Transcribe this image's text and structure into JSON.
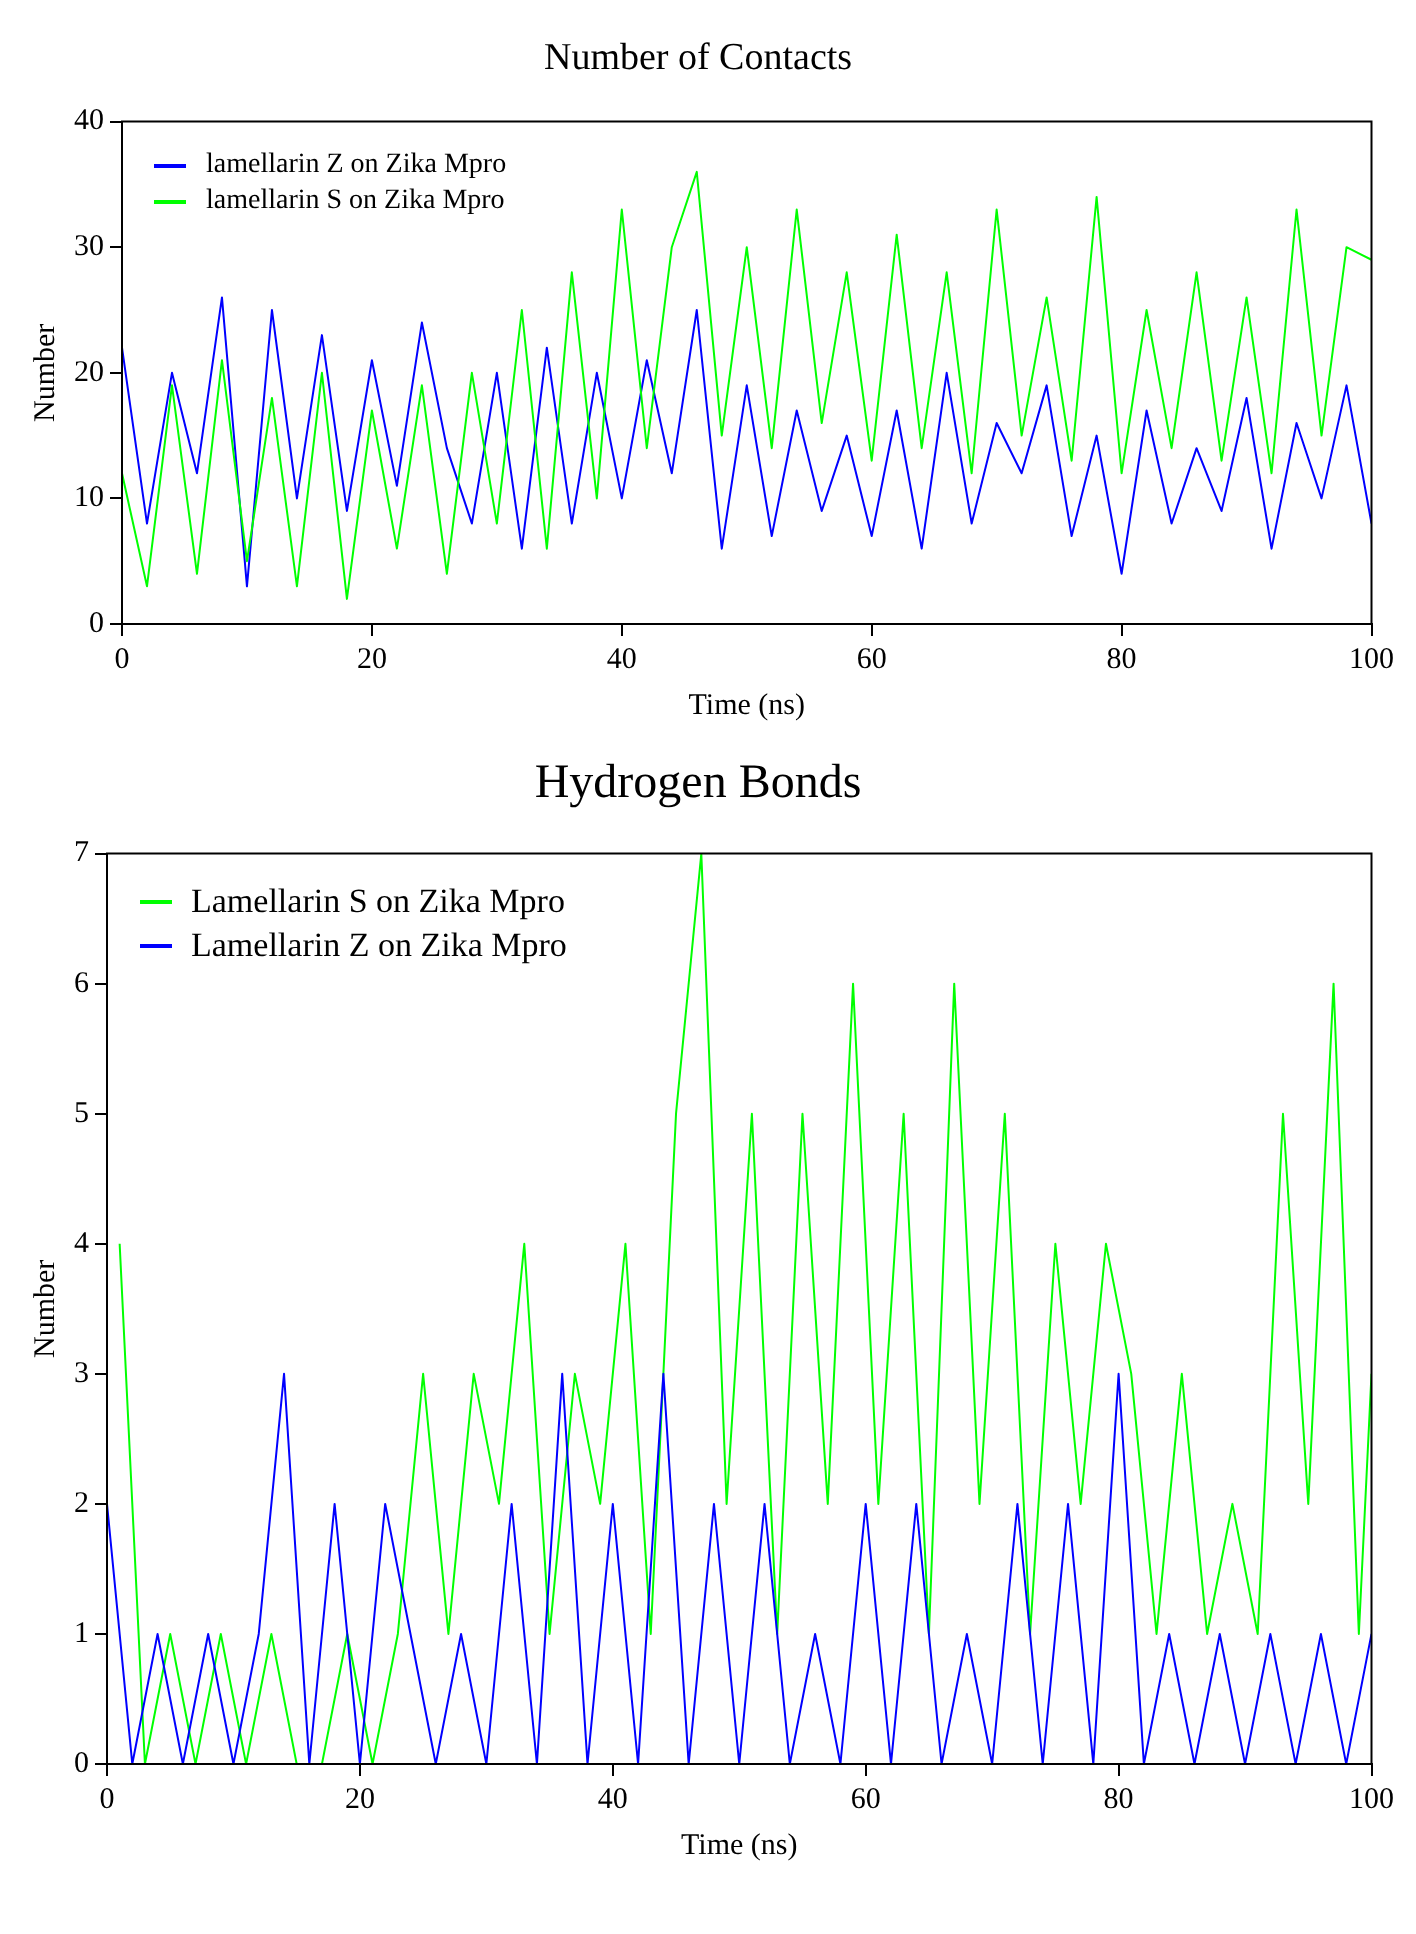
{
  "chart_data": [
    {
      "type": "line",
      "title": "Number of Contacts",
      "xlabel": "Time (ns)",
      "ylabel": "Number",
      "xlim": [
        0,
        100
      ],
      "xticks": [
        0,
        20,
        40,
        60,
        80,
        100
      ],
      "ylim": [
        0,
        40
      ],
      "yticks": [
        0,
        10,
        20,
        30,
        40
      ],
      "grid": false,
      "legend": "top left",
      "marker": "none",
      "line_style": "solid",
      "series": [
        {
          "name": "lamellarin Z on Zika Mpro",
          "color": "#0000ff",
          "x": [
            0,
            2,
            4,
            6,
            8,
            10,
            12,
            14,
            16,
            18,
            20,
            22,
            24,
            26,
            28,
            30,
            32,
            34,
            36,
            38,
            40,
            42,
            44,
            46,
            48,
            50,
            52,
            54,
            56,
            58,
            60,
            62,
            64,
            66,
            68,
            70,
            72,
            74,
            76,
            78,
            80,
            82,
            84,
            86,
            88,
            90,
            92,
            94,
            96,
            98,
            100
          ],
          "values": [
            22,
            8,
            20,
            12,
            26,
            3,
            25,
            10,
            23,
            9,
            21,
            11,
            24,
            14,
            8,
            20,
            6,
            22,
            8,
            20,
            10,
            21,
            12,
            25,
            6,
            19,
            7,
            17,
            9,
            15,
            7,
            17,
            6,
            20,
            8,
            16,
            12,
            19,
            7,
            15,
            4,
            17,
            8,
            14,
            9,
            18,
            6,
            16,
            10,
            19,
            8
          ]
        },
        {
          "name": "lamellarin S on Zika Mpro",
          "color": "#00ff00",
          "x": [
            0,
            2,
            4,
            6,
            8,
            10,
            12,
            14,
            16,
            18,
            20,
            22,
            24,
            26,
            28,
            30,
            32,
            34,
            36,
            38,
            40,
            42,
            44,
            46,
            48,
            50,
            52,
            54,
            56,
            58,
            60,
            62,
            64,
            66,
            68,
            70,
            72,
            74,
            76,
            78,
            80,
            82,
            84,
            86,
            88,
            90,
            92,
            94,
            96,
            98,
            100
          ],
          "values": [
            12,
            3,
            19,
            4,
            21,
            5,
            18,
            3,
            20,
            2,
            17,
            6,
            19,
            4,
            20,
            8,
            25,
            6,
            28,
            10,
            33,
            14,
            30,
            36,
            15,
            30,
            14,
            33,
            16,
            28,
            13,
            31,
            14,
            28,
            12,
            33,
            15,
            26,
            13,
            34,
            12,
            25,
            14,
            28,
            13,
            26,
            12,
            33,
            15,
            30,
            29
          ]
        }
      ]
    },
    {
      "type": "line",
      "title": "Hydrogen Bonds",
      "xlabel": "Time (ns)",
      "ylabel": "Number",
      "xlim": [
        0,
        100
      ],
      "xticks": [
        0,
        20,
        40,
        60,
        80,
        100
      ],
      "ylim": [
        0,
        7
      ],
      "yticks": [
        0,
        1,
        2,
        3,
        4,
        5,
        6,
        7
      ],
      "grid": false,
      "legend": "top left",
      "marker": "none",
      "line_style": "solid",
      "series": [
        {
          "name": "Lamellarin S on Zika Mpro",
          "color": "#00ff00",
          "x": [
            1,
            3,
            5,
            7,
            9,
            11,
            13,
            15,
            17,
            19,
            21,
            23,
            25,
            27,
            29,
            31,
            33,
            35,
            37,
            39,
            41,
            43,
            45,
            47,
            49,
            51,
            53,
            55,
            57,
            59,
            61,
            63,
            65,
            67,
            69,
            71,
            73,
            75,
            77,
            79,
            81,
            83,
            85,
            87,
            89,
            91,
            93,
            95,
            97,
            99,
            100
          ],
          "values": [
            4,
            0,
            1,
            0,
            1,
            0,
            1,
            0,
            0,
            1,
            0,
            1,
            3,
            1,
            3,
            2,
            4,
            1,
            3,
            2,
            4,
            1,
            5,
            7,
            2,
            5,
            1,
            5,
            2,
            6,
            2,
            5,
            1,
            6,
            2,
            5,
            1,
            4,
            2,
            4,
            3,
            1,
            3,
            1,
            2,
            1,
            5,
            2,
            6,
            1,
            3
          ]
        },
        {
          "name": "Lamellarin Z on Zika Mpro",
          "color": "#0000ff",
          "x": [
            0,
            2,
            4,
            6,
            8,
            10,
            12,
            14,
            16,
            18,
            20,
            22,
            24,
            26,
            28,
            30,
            32,
            34,
            36,
            38,
            40,
            42,
            44,
            46,
            48,
            50,
            52,
            54,
            56,
            58,
            60,
            62,
            64,
            66,
            68,
            70,
            72,
            74,
            76,
            78,
            80,
            82,
            84,
            86,
            88,
            90,
            92,
            94,
            96,
            98,
            100
          ],
          "values": [
            2,
            0,
            1,
            0,
            1,
            0,
            1,
            3,
            0,
            2,
            0,
            2,
            1,
            0,
            1,
            0,
            2,
            0,
            3,
            0,
            2,
            0,
            3,
            0,
            2,
            0,
            2,
            0,
            1,
            0,
            2,
            0,
            2,
            0,
            1,
            0,
            2,
            0,
            2,
            0,
            3,
            0,
            1,
            0,
            1,
            0,
            1,
            0,
            1,
            0,
            1
          ]
        }
      ]
    }
  ]
}
